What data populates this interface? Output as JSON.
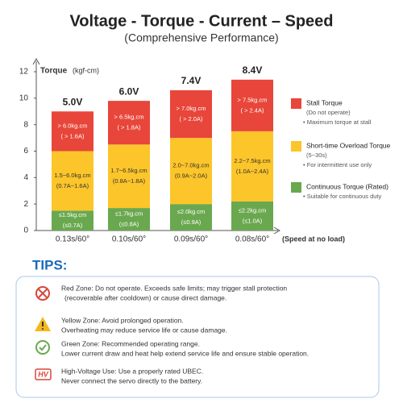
{
  "chart_data": {
    "type": "stacked_bar",
    "title": "Voltage - Torque - Current – Speed",
    "subtitle": "(Comprehensive Performance)",
    "y_label": "Torque",
    "y_unit": "(kgf-cm)",
    "x_label": "(Speed at no load)",
    "categories": [
      "0.13s/60°",
      "0.10s/60°",
      "0.09s/60°",
      "0.08s/60°"
    ],
    "bar_labels": [
      "5.0V",
      "6.0V",
      "7.4V",
      "8.4V"
    ],
    "ylim": [
      0,
      12
    ],
    "yticks": [
      0,
      2,
      4,
      6,
      8,
      10,
      12
    ],
    "series": [
      {
        "name": "Continuous Torque (Rated)",
        "color": "#6aa84f",
        "label_color": "#ffffff",
        "description": "• Suitable for continuous duty",
        "values": [
          1.5,
          1.7,
          2.0,
          2.2
        ],
        "labels": [
          [
            "≤1.5kg.cm",
            "(≤0.7A)"
          ],
          [
            "≤1.7kg.cm",
            "(≤0.8A)"
          ],
          [
            "≤2.0kg.cm",
            "(≤0.9A)"
          ],
          [
            "≤2.2kg.cm",
            "(≤1.0A)"
          ]
        ]
      },
      {
        "name": "Short-time Overload Torque",
        "color": "#fcc52a",
        "label_color": "#333333",
        "note": "(5~30s)",
        "description": "• For intermittent use only",
        "values": [
          4.5,
          4.8,
          5.0,
          5.3
        ],
        "labels": [
          [
            "1.5~6.0kg.cm",
            "(0.7A~1.6A)"
          ],
          [
            "1.7~6.5kg.cm",
            "(0.8A~1.8A)"
          ],
          [
            "2.0~7.0kg.cm",
            "(0.9A~2.0A)"
          ],
          [
            "2.2~7.5kg.cm",
            "(1.0A~2.4A)"
          ]
        ]
      },
      {
        "name": "Stall Torque",
        "color": "#e8463a",
        "label_color": "#ffffff",
        "note": "(Do not operate)",
        "description": "• Maximum torque at stall",
        "values": [
          3.0,
          3.3,
          3.6,
          3.9
        ],
        "labels": [
          [
            "> 6.0kg.cm",
            "( > 1.6A)"
          ],
          [
            "> 6.5kg.cm",
            "( > 1.8A)"
          ],
          [
            "> 7.0kg.cm",
            "( > 2.0A)"
          ],
          [
            "> 7.5kg.cm",
            "( > 2.4A)"
          ]
        ]
      }
    ]
  },
  "tips": {
    "title": "TIPS:",
    "items": [
      {
        "lines": [
          "Red Zone: Do not operate. Exceeds safe limits; may trigger stall protection",
          "(recoverable after cooldown) or cause direct damage."
        ]
      },
      {
        "lines": [
          "Yellow Zone: Avoid prolonged operation.",
          "Overheating may reduce service life or cause damage."
        ]
      },
      {
        "lines": [
          "Green Zone: Recommended operating range.",
          "Lower current draw and heat help extend service life and ensure stable operation."
        ]
      },
      {
        "icon_text": "HV",
        "lines": [
          "High-Voltage Use: Use a properly rated UBEC.",
          "Never connect the servo directly to the battery."
        ]
      }
    ]
  }
}
